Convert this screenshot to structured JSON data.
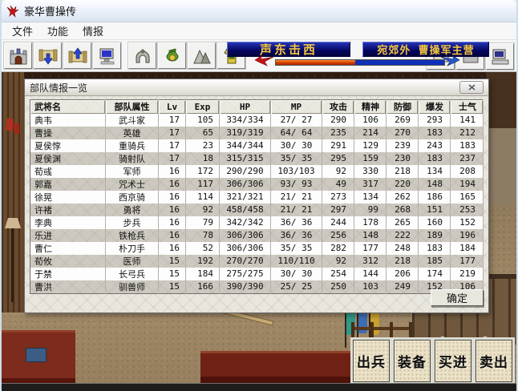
{
  "window": {
    "title": "豪华曹操传",
    "icon": "red-eagle"
  },
  "menu": {
    "items": [
      {
        "label": "文件"
      },
      {
        "label": "功能"
      },
      {
        "label": "情报"
      }
    ]
  },
  "toolbar": {
    "button_icons": [
      "fort",
      "scroll-down",
      "scroll-up",
      "computer",
      "helmet",
      "money-bag",
      "mountain",
      "armor"
    ],
    "right_button_icons": [
      "printer",
      "computer"
    ],
    "strategy_banner": "声东击西",
    "location_banner": "宛郊外  曹操军主营",
    "power_bar": {
      "left_icon": "red-bird",
      "right_icon": "blue-bird",
      "red_percent": 47,
      "red_color": "#d43c00",
      "blue_color": "#1030b8"
    }
  },
  "dialog": {
    "title": "部队情报一览",
    "close_icon": "close-x",
    "confirm_label": "确定",
    "table": {
      "headers": [
        "武将名",
        "部队属性",
        "Lv",
        "Exp",
        "HP",
        "MP",
        "攻击",
        "精神",
        "防御",
        "爆发",
        "士气"
      ],
      "rows": [
        [
          "典韦",
          "武斗家",
          "17",
          "105",
          "334/334",
          "27/ 27",
          "290",
          "106",
          "269",
          "293",
          "141"
        ],
        [
          "曹操",
          "英雄",
          "17",
          "65",
          "319/319",
          "64/ 64",
          "235",
          "214",
          "270",
          "183",
          "212"
        ],
        [
          "夏侯惇",
          "重骑兵",
          "17",
          "23",
          "344/344",
          "30/ 30",
          "291",
          "129",
          "239",
          "243",
          "183"
        ],
        [
          "夏侯渊",
          "骑射队",
          "17",
          "18",
          "315/315",
          "35/ 35",
          "295",
          "159",
          "230",
          "183",
          "237"
        ],
        [
          "荀彧",
          "军师",
          "16",
          "172",
          "290/290",
          "103/103",
          "92",
          "330",
          "218",
          "134",
          "208"
        ],
        [
          "郭嘉",
          "咒术士",
          "16",
          "117",
          "306/306",
          "93/ 93",
          "49",
          "317",
          "220",
          "148",
          "194"
        ],
        [
          "徐晃",
          "西京骑",
          "16",
          "114",
          "321/321",
          "21/ 21",
          "273",
          "134",
          "262",
          "186",
          "165"
        ],
        [
          "许褚",
          "勇将",
          "16",
          "92",
          "458/458",
          "21/ 21",
          "297",
          "99",
          "268",
          "151",
          "253"
        ],
        [
          "李典",
          "步兵",
          "16",
          "79",
          "342/342",
          "36/ 36",
          "244",
          "178",
          "265",
          "160",
          "152"
        ],
        [
          "乐进",
          "铁枪兵",
          "16",
          "78",
          "306/306",
          "36/ 36",
          "256",
          "148",
          "222",
          "189",
          "196"
        ],
        [
          "曹仁",
          "朴刀手",
          "16",
          "52",
          "306/306",
          "35/ 35",
          "282",
          "177",
          "248",
          "183",
          "184"
        ],
        [
          "荀攸",
          "医师",
          "15",
          "192",
          "270/270",
          "110/110",
          "92",
          "312",
          "218",
          "185",
          "177"
        ],
        [
          "于禁",
          "长弓兵",
          "15",
          "184",
          "275/275",
          "30/ 30",
          "254",
          "144",
          "206",
          "174",
          "219"
        ],
        [
          "曹洪",
          "驯兽师",
          "15",
          "166",
          "390/390",
          "25/ 25",
          "250",
          "103",
          "249",
          "152",
          "106"
        ]
      ]
    }
  },
  "game_buttons": [
    {
      "label": "出兵"
    },
    {
      "label": "装备"
    },
    {
      "label": "买进"
    },
    {
      "label": "卖出"
    }
  ]
}
